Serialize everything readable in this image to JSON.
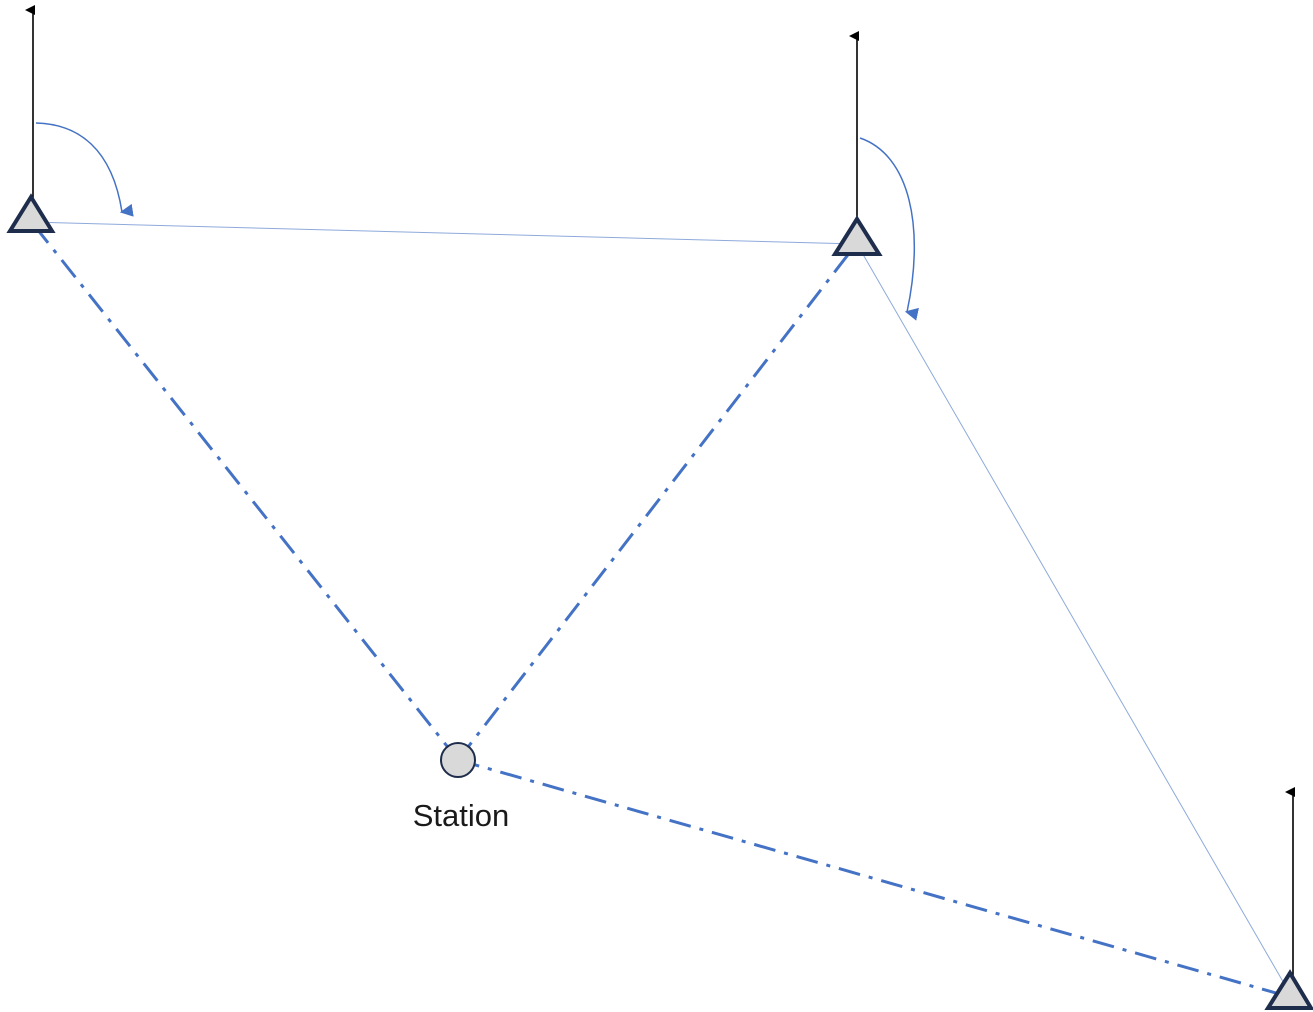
{
  "labels": {
    "station": "Station"
  },
  "colors": {
    "line_blue": "#4472c4",
    "thin_blue": "#8eaadb",
    "marker_outline": "#1f2d4d",
    "marker_fill": "#d9d9d9",
    "north_arrow": "#000000"
  },
  "icons": {
    "control_point": "triangle",
    "station_point": "circle",
    "north_arrow": "arrow-up"
  }
}
